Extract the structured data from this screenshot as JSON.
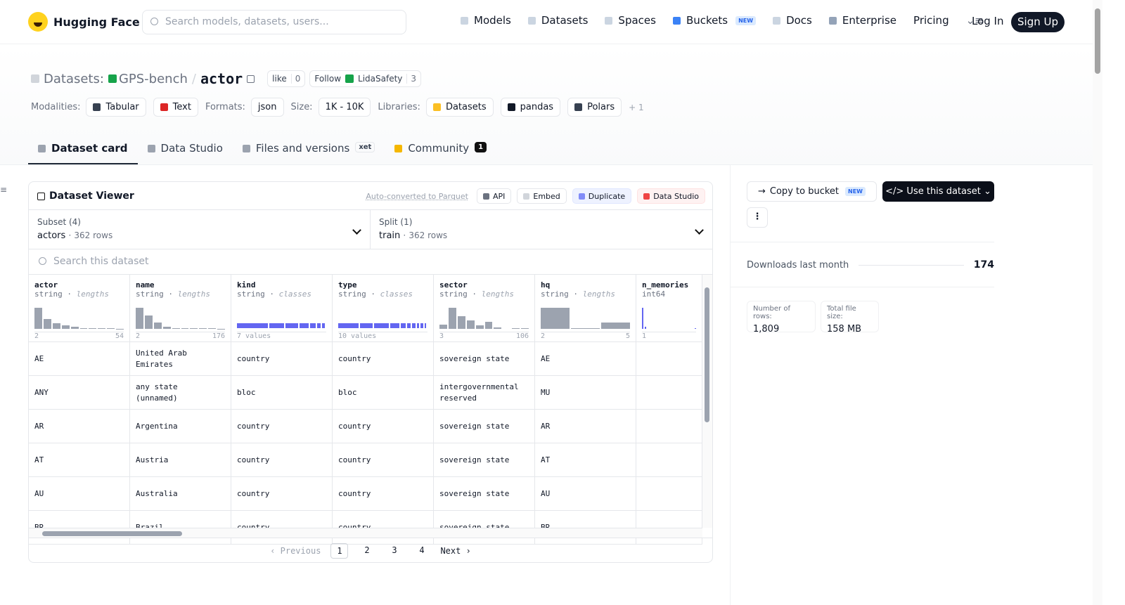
{
  "nav": {
    "brand": "Hugging Face",
    "search_placeholder": "Search models, datasets, users...",
    "links": [
      "Models",
      "Datasets",
      "Spaces",
      "Buckets",
      "Docs",
      "Enterprise",
      "Pricing"
    ],
    "buckets_badge": "NEW",
    "login": "Log In",
    "signup": "Sign Up"
  },
  "header": {
    "kind": "Datasets:",
    "owner": "GPS-bench",
    "separator": "/",
    "name": "actor",
    "like": "like",
    "like_count": 0,
    "follow": "Follow",
    "follow_org": "LidaSafety",
    "follow_count": 3,
    "tags": [
      {
        "label": "Modalities:",
        "items": [
          "Tabular",
          "Text"
        ]
      },
      {
        "label": "Formats:",
        "items": [
          "json"
        ]
      },
      {
        "label": "Size:",
        "items": [
          "1K - 10K"
        ]
      },
      {
        "label": "Libraries:",
        "items": [
          "Datasets",
          "pandas",
          "Polars"
        ]
      }
    ],
    "more": "+ 1"
  },
  "tabs": [
    {
      "label": "Dataset card"
    },
    {
      "label": "Data Studio"
    },
    {
      "label": "Files and versions",
      "badge": "xet"
    },
    {
      "label": "Community",
      "badge": 1
    }
  ],
  "viewer": {
    "title": "Dataset Viewer",
    "auto_converted": "Auto-converted to Parquet",
    "buttons": [
      "API",
      "Embed",
      "Duplicate",
      "Data Studio"
    ],
    "subset": {
      "label": "Subset (4)",
      "value": "actors",
      "rows": "362 rows"
    },
    "split": {
      "label": "Split (1)",
      "value": "train",
      "rows": "362 rows"
    },
    "search_placeholder": "Search this dataset",
    "columns": [
      {
        "name": "actor",
        "dtype": "string",
        "stat": "lengths",
        "min": 2,
        "max": 54,
        "histogram": [
          85,
          40,
          22,
          14,
          8,
          4,
          2,
          2,
          2,
          1
        ]
      },
      {
        "name": "name",
        "dtype": "string",
        "stat": "lengths",
        "min": 2,
        "max": 176,
        "histogram": [
          85,
          55,
          25,
          8,
          3,
          3,
          2,
          2,
          2,
          1
        ]
      },
      {
        "name": "kind",
        "dtype": "string",
        "stat": "classes",
        "summary": "7 values"
      },
      {
        "name": "type",
        "dtype": "string",
        "stat": "classes",
        "summary": "10 values"
      },
      {
        "name": "sector",
        "dtype": "string",
        "stat": "lengths",
        "min": 3,
        "max": 106,
        "histogram": [
          20,
          100,
          60,
          40,
          18,
          35,
          8,
          0,
          3,
          2
        ]
      },
      {
        "name": "hq",
        "dtype": "string",
        "stat": "lengths",
        "min": 2,
        "max": 5,
        "histogram": [
          100,
          5,
          30
        ]
      },
      {
        "name": "n_memories",
        "dtype": "int64",
        "min": 1,
        "histogram": [
          100,
          10,
          0,
          0,
          0,
          0,
          0,
          0,
          0,
          0,
          0,
          0,
          0,
          0,
          0,
          0,
          0,
          0,
          4
        ]
      }
    ],
    "rows": [
      [
        "AE",
        "United Arab\nEmirates",
        "country",
        "country",
        "sovereign state",
        "AE"
      ],
      [
        "ANY",
        "any state\n(unnamed)",
        "bloc",
        "bloc",
        "intergovernmental\nreserved",
        "MU"
      ],
      [
        "AR",
        "Argentina",
        "country",
        "country",
        "sovereign state",
        "AR"
      ],
      [
        "AT",
        "Austria",
        "country",
        "country",
        "sovereign state",
        "AT"
      ],
      [
        "AU",
        "Australia",
        "country",
        "country",
        "sovereign state",
        "AU"
      ],
      [
        "BR",
        "Brazil",
        "country",
        "country",
        "sovereign state",
        "BR"
      ]
    ],
    "pagination": {
      "previous": "‹ Previous",
      "pages": [
        1,
        2,
        3,
        4
      ],
      "next": "Next ›"
    }
  },
  "sidebar": {
    "copy": "Copy to bucket",
    "copy_badge": "NEW",
    "use": "</> Use this dataset ⌄",
    "downloads_label": "Downloads last month",
    "downloads": 174,
    "rows_label": "Number of rows:",
    "rows": "1,809",
    "size_label": "Total file size:",
    "size": "158 MB"
  }
}
